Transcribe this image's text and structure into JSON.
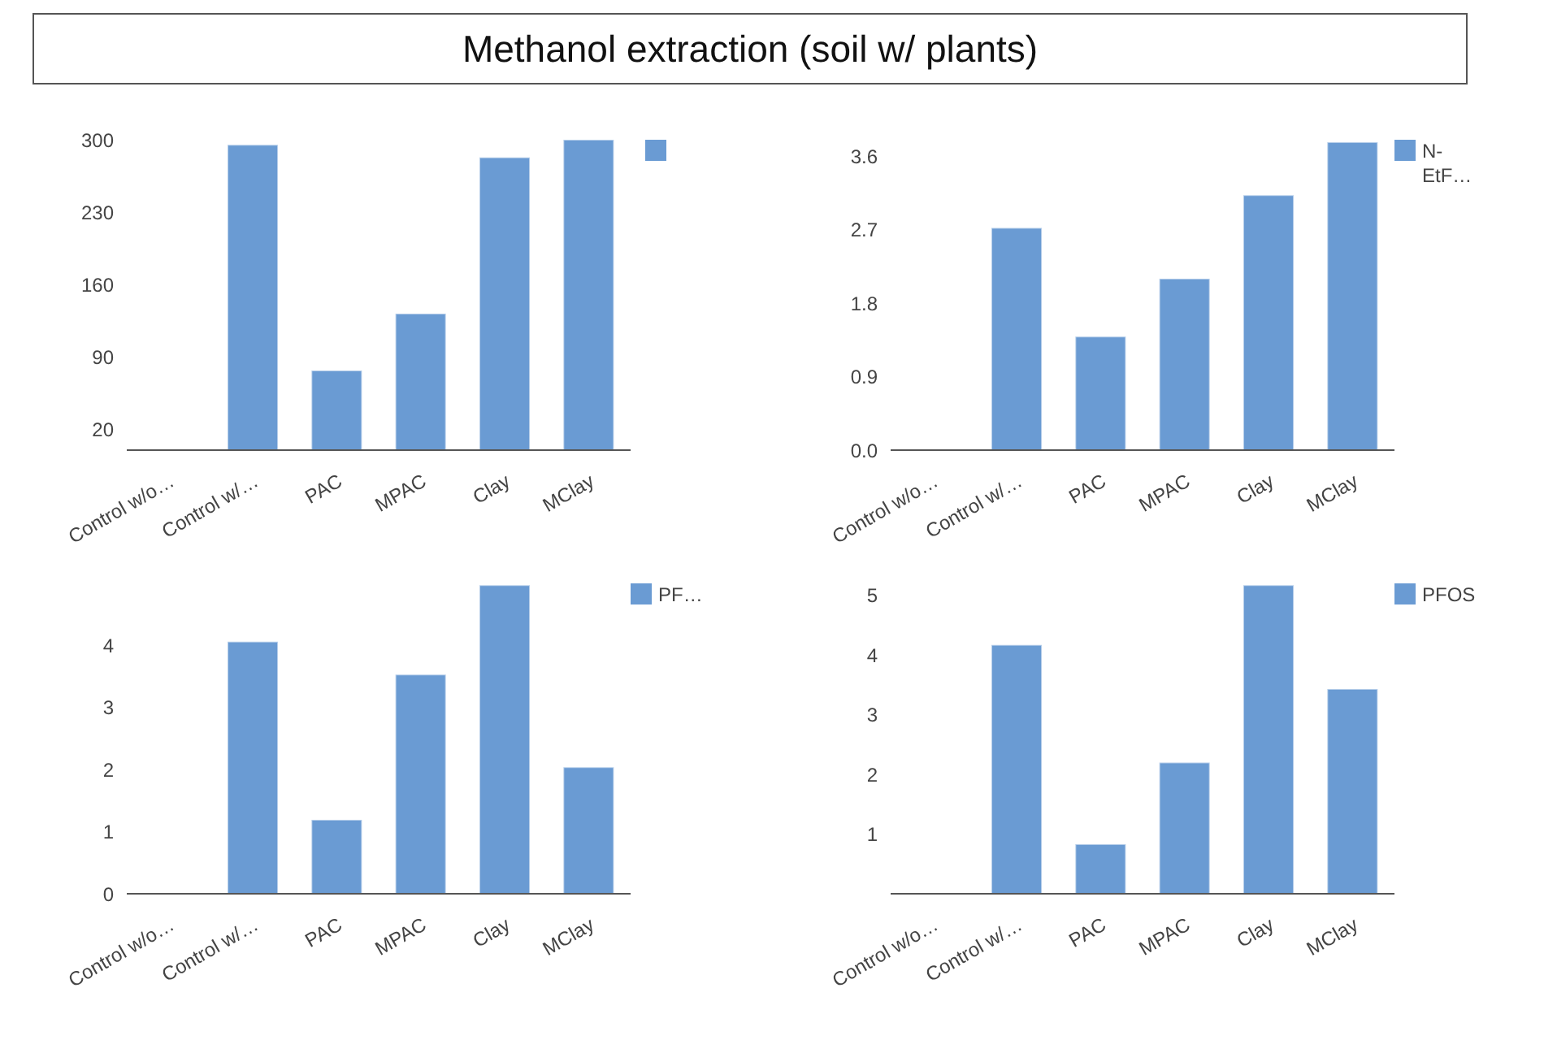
{
  "chart_data": [
    {
      "type": "bar",
      "title": "Methanol extraction (soil w/ plants)",
      "categories": [
        "Control w/o…",
        "Control w/…",
        "PAC",
        "MPAC",
        "Clay",
        "MClay"
      ],
      "series": [
        {
          "color": "#6a9bd3",
          "values": [
            0,
            295,
            77,
            132,
            283,
            300
          ]
        }
      ],
      "ylim": [
        0,
        300
      ],
      "yticks": [
        20,
        90,
        160,
        230,
        300
      ],
      "grid": false
    },
    {
      "type": "bar",
      "categories": [
        "Control w/o…",
        "Control w/…",
        "PAC",
        "MPAC",
        "Clay",
        "MClay"
      ],
      "series": [
        {
          "name": "N-EtF…",
          "color": "#6a9bd3",
          "values": [
            0,
            2.72,
            1.39,
            2.1,
            3.12,
            3.77
          ]
        }
      ],
      "ylim": [
        0,
        3.8
      ],
      "yticks": [
        {
          "value": 0,
          "label": "0.0"
        },
        0.9,
        1.8,
        2.7,
        3.6
      ],
      "grid": false,
      "legend": "top right"
    },
    {
      "type": "bar",
      "categories": [
        "Control w/o…",
        "Control w/…",
        "PAC",
        "MPAC",
        "Clay",
        "MClay"
      ],
      "series": [
        {
          "name": "PF…",
          "color": "#6a9bd3",
          "values": [
            0,
            4.06,
            1.19,
            3.53,
            4.97,
            2.04
          ]
        }
      ],
      "ylim": [
        0,
        5
      ],
      "yticks": [
        0,
        1,
        2,
        3,
        4
      ],
      "grid": false,
      "legend": "top right"
    },
    {
      "type": "bar",
      "categories": [
        "Control w/o…",
        "Control w/…",
        "PAC",
        "MPAC",
        "Clay",
        "MClay"
      ],
      "series": [
        {
          "name": "PFOS",
          "color": "#6a9bd3",
          "values": [
            0,
            4.17,
            0.83,
            2.2,
            5.17,
            3.43
          ]
        }
      ],
      "ylim": [
        0,
        5.2
      ],
      "yticks": [
        1,
        2,
        3,
        4,
        5
      ],
      "grid": false,
      "legend": "top right"
    }
  ]
}
